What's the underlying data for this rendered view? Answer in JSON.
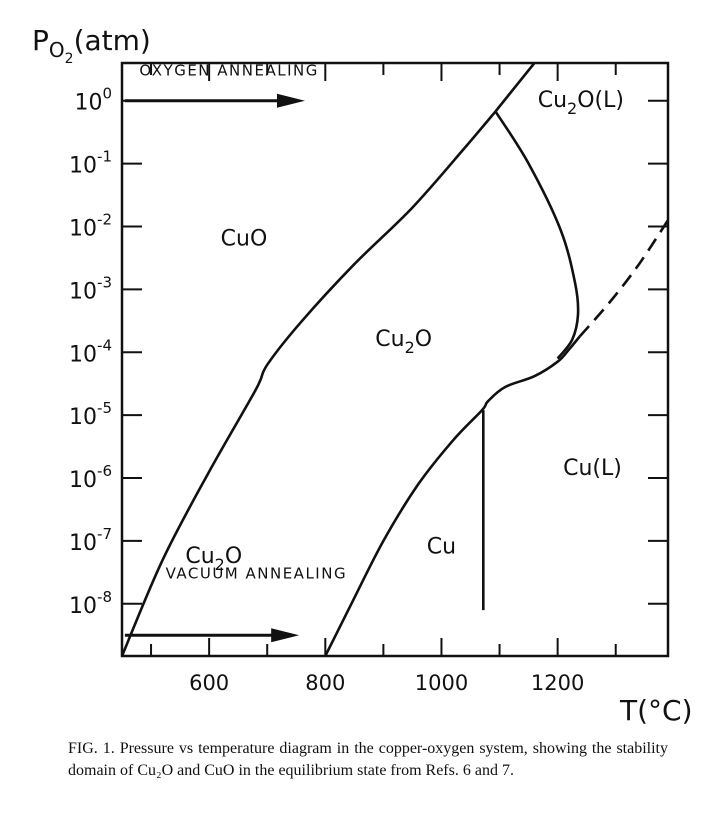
{
  "chart_data": {
    "type": "line",
    "y_axis_label": {
      "main": "P",
      "sub": "O",
      "subsub": "2",
      "unit": "(atm)"
    },
    "x_axis_label": "T(°C)",
    "y_scale": "log",
    "xlim": [
      450,
      1390
    ],
    "ylim_log10": [
      -8.83,
      0.6
    ],
    "x_ticks": [
      600,
      800,
      1000,
      1200
    ],
    "y_ticks": [
      {
        "base": "10",
        "exp": "0",
        "log": 0
      },
      {
        "base": "10",
        "exp": "-1",
        "log": -1
      },
      {
        "base": "10",
        "exp": "-2",
        "log": -2
      },
      {
        "base": "10",
        "exp": "-3",
        "log": -3
      },
      {
        "base": "10",
        "exp": "-4",
        "log": -4
      },
      {
        "base": "10",
        "exp": "-5",
        "log": -5
      },
      {
        "base": "10",
        "exp": "-6",
        "log": -6
      },
      {
        "base": "10",
        "exp": "-7",
        "log": -7
      },
      {
        "base": "10",
        "exp": "-8",
        "log": -8
      }
    ],
    "curves": [
      {
        "id": "cuo-cu2o-boundary",
        "style": "solid",
        "points": [
          [
            450,
            -8.83
          ],
          [
            520,
            -7.3
          ],
          [
            600,
            -5.9
          ],
          [
            680,
            -4.6
          ],
          [
            700,
            -4.2
          ],
          [
            760,
            -3.5
          ],
          [
            850,
            -2.6
          ],
          [
            950,
            -1.7
          ],
          [
            1040,
            -0.75
          ],
          [
            1093,
            -0.17
          ]
        ]
      },
      {
        "id": "cu2o-liquid-upper",
        "style": "solid",
        "points": [
          [
            1093,
            -0.17
          ],
          [
            1160,
            0.6
          ]
        ]
      },
      {
        "id": "cu2o-liquid-boundary",
        "style": "solid",
        "points": [
          [
            1093,
            -0.17
          ],
          [
            1150,
            -1.0
          ],
          [
            1205,
            -2.05
          ],
          [
            1230,
            -2.9
          ],
          [
            1235,
            -3.4
          ],
          [
            1225,
            -3.8
          ],
          [
            1200,
            -4.1
          ]
        ]
      },
      {
        "id": "cu-cu2o-boundary",
        "style": "solid",
        "points": [
          [
            800,
            -8.83
          ],
          [
            845,
            -8.0
          ],
          [
            900,
            -7.0
          ],
          [
            960,
            -6.1
          ],
          [
            1020,
            -5.4
          ],
          [
            1070,
            -4.92
          ],
          [
            1080,
            -4.78
          ],
          [
            1110,
            -4.55
          ],
          [
            1160,
            -4.38
          ],
          [
            1200,
            -4.15
          ],
          [
            1220,
            -3.95
          ],
          [
            1238,
            -3.75
          ]
        ]
      },
      {
        "id": "cu-melting-line",
        "style": "solid",
        "points": [
          [
            1072,
            -4.92
          ],
          [
            1072,
            -8.1
          ]
        ]
      },
      {
        "id": "extrapolated-boundary",
        "style": "dashed",
        "points": [
          [
            1238,
            -3.75
          ],
          [
            1290,
            -3.2
          ],
          [
            1340,
            -2.6
          ],
          [
            1390,
            -1.9
          ]
        ]
      }
    ],
    "region_labels": [
      {
        "text": "CuO",
        "base": "CuO",
        "sub": "",
        "tail": "",
        "x": 660,
        "logy": -2.3
      },
      {
        "text": "Cu2O",
        "base": "Cu",
        "sub": "2",
        "tail": "O",
        "x": 935,
        "logy": -3.9
      },
      {
        "text": "Cu2O(L)",
        "base": "Cu",
        "sub": "2",
        "tail": "O(L)",
        "x": 1240,
        "logy": -0.1
      },
      {
        "text": "Cu(L)",
        "base": "Cu(L)",
        "sub": "",
        "tail": "",
        "x": 1260,
        "logy": -5.95
      },
      {
        "text": "Cu2O",
        "base": "Cu",
        "sub": "2",
        "tail": "O",
        "x": 608,
        "logy": -7.35
      },
      {
        "text": "Cu",
        "base": "Cu",
        "sub": "",
        "tail": "",
        "x": 1000,
        "logy": -7.2
      }
    ],
    "annotations": [
      {
        "text": "OXYGEN ANNEALING",
        "x": 480,
        "logy": 0.4,
        "arrow_from": [
          455,
          0.0
        ],
        "arrow_to": [
          765,
          0.0
        ]
      },
      {
        "text": "VACUUM ANNEALING",
        "x": 525,
        "logy": -7.6,
        "arrow_from": [
          455,
          -8.5
        ],
        "arrow_to": [
          755,
          -8.5
        ]
      }
    ]
  },
  "caption": "FIG. 1. Pressure vs temperature diagram in the copper-oxygen system, showing the stability domain of Cu₂O and CuO in the equilibrium state from Refs. 6 and 7."
}
